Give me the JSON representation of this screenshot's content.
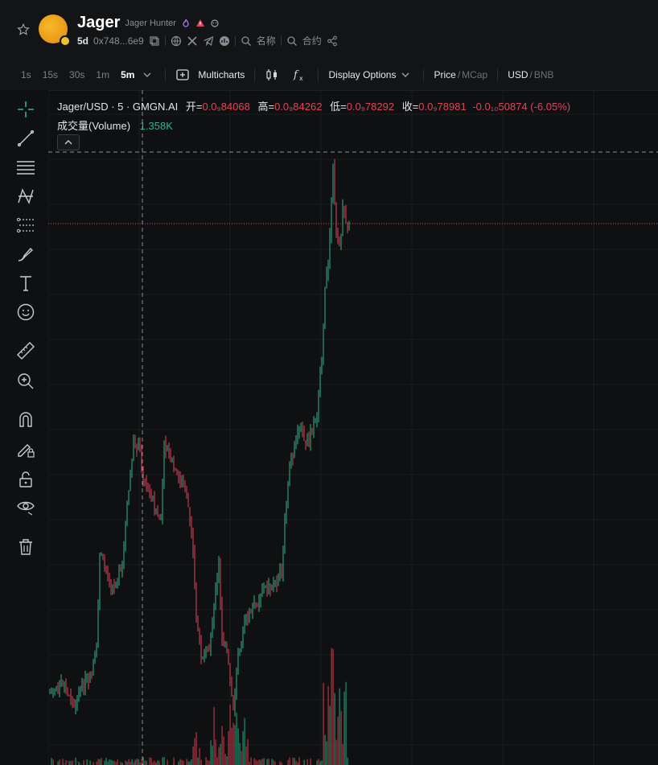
{
  "header": {
    "token_name": "Jager",
    "token_full": "Jager Hunter",
    "age": "5d",
    "address": "0x748...6e9",
    "search_name": "名称",
    "search_contract": "合约"
  },
  "toolbar": {
    "timeframes": [
      "1s",
      "15s",
      "30s",
      "1m",
      "5m"
    ],
    "active_timeframe": "5m",
    "multicharts": "Multicharts",
    "display_options": "Display Options",
    "price": "Price",
    "mcap": "MCap",
    "usd": "USD",
    "bnb": "BNB"
  },
  "legend": {
    "symbol": "Jager/USD · 5 · GMGN.AI",
    "open_label": "开=",
    "open": "0.0₉84068",
    "high_label": "高=",
    "high": "0.0₉84262",
    "low_label": "低=",
    "low": "0.0₉78292",
    "close_label": "收=",
    "close": "0.0₉78981",
    "change": "-0.0₁₀50874 (-6.05%)",
    "volume_label": "成交量(Volume)",
    "volume": "1.358K"
  },
  "colors": {
    "up": "#2fb58a",
    "down": "#e0455a",
    "background": "#0f1012",
    "accent": "#f7b928"
  },
  "tools": [
    "crosshair-icon",
    "trend-line-icon",
    "horizontal-lines-icon",
    "pattern-icon",
    "fib-icon",
    "brush-icon",
    "text-icon",
    "emoji-icon",
    "ruler-icon",
    "zoom-in-icon",
    "magnet-icon",
    "lock-drawing-icon",
    "unlock-icon",
    "eye-icon",
    "trash-icon"
  ]
}
